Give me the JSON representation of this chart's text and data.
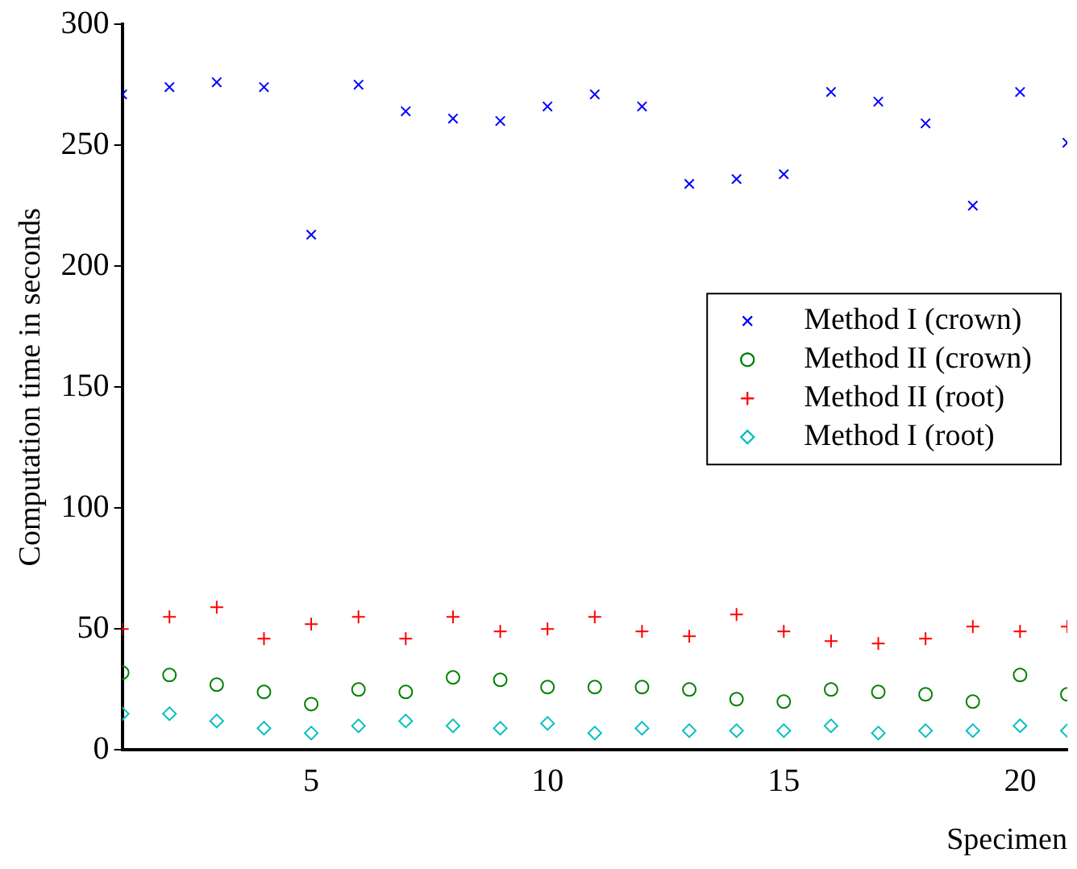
{
  "chart_data": {
    "type": "scatter",
    "xlabel": "Specimen",
    "ylabel": "Computation time in seconds",
    "x": [
      1,
      2,
      3,
      4,
      5,
      6,
      7,
      8,
      9,
      10,
      11,
      12,
      13,
      14,
      15,
      16,
      17,
      18,
      19,
      20,
      21
    ],
    "xlim": [
      1,
      21
    ],
    "xticks": [
      5,
      10,
      15,
      20
    ],
    "ylim": [
      0,
      300
    ],
    "yticks": [
      0,
      50,
      100,
      150,
      200,
      250,
      300
    ],
    "grid": false,
    "legend": "right",
    "series": [
      {
        "name": "Method I (crown)",
        "color": "#0000ff",
        "marker": "cross",
        "values": [
          271,
          274,
          276,
          274,
          213,
          275,
          264,
          261,
          260,
          266,
          271,
          266,
          234,
          236,
          238,
          272,
          268,
          259,
          225,
          272,
          251
        ]
      },
      {
        "name": "Method II (crown)",
        "color": "#008000",
        "marker": "circle",
        "values": [
          32,
          31,
          27,
          24,
          19,
          25,
          24,
          30,
          29,
          26,
          26,
          26,
          25,
          21,
          20,
          25,
          24,
          23,
          20,
          31,
          23
        ]
      },
      {
        "name": "Method II (root)",
        "color": "#ff0000",
        "marker": "plus",
        "values": [
          50,
          55,
          59,
          46,
          52,
          55,
          46,
          55,
          49,
          50,
          55,
          49,
          47,
          56,
          49,
          45,
          44,
          46,
          51,
          49,
          51
        ]
      },
      {
        "name": "Method I (root)",
        "color": "#00bfbf",
        "marker": "diamond",
        "values": [
          15,
          15,
          12,
          9,
          7,
          10,
          12,
          10,
          9,
          11,
          7,
          9,
          8,
          8,
          8,
          10,
          7,
          8,
          8,
          10,
          8
        ]
      }
    ]
  }
}
